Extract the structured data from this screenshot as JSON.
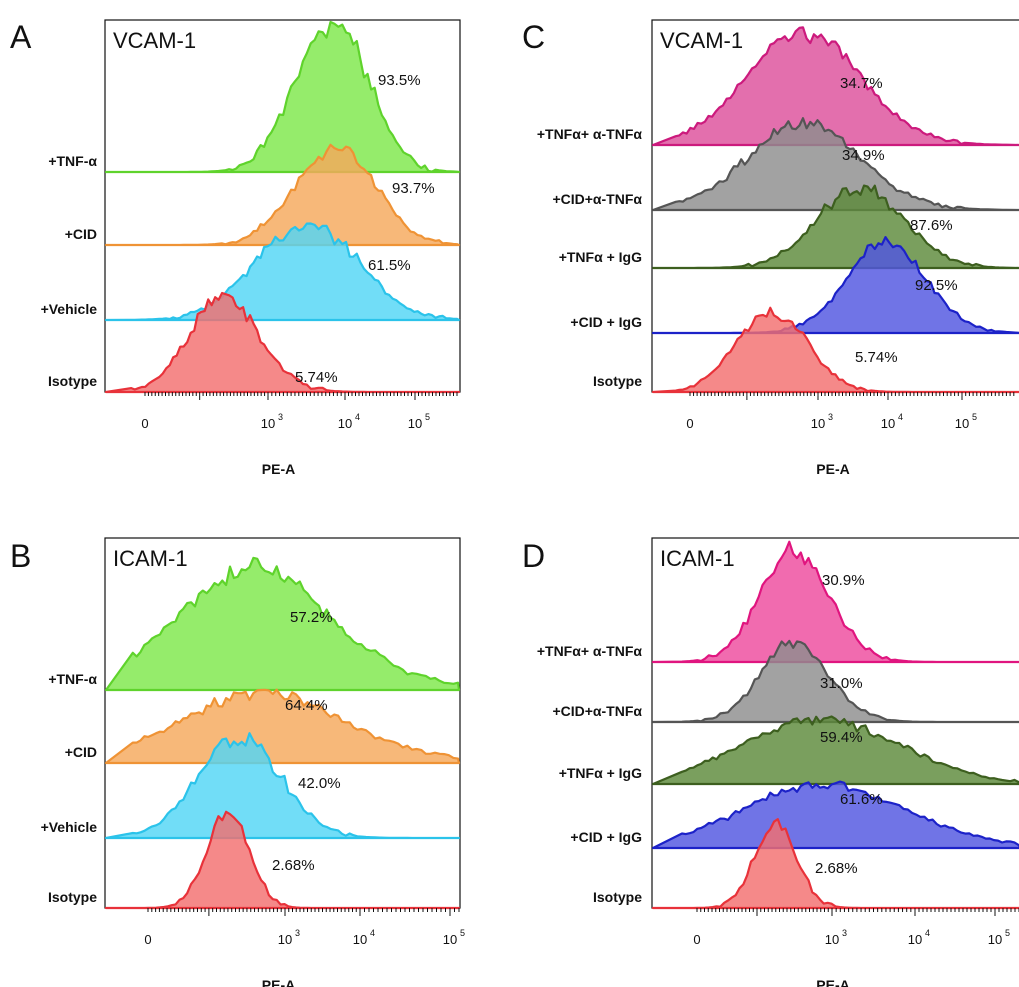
{
  "chart_data": [
    {
      "type": "area",
      "panel": "A",
      "title": "VCAM-1",
      "xlabel": "PE-A",
      "xscale": "biexponential",
      "x_ticks": [
        {
          "base": "0",
          "exp": ""
        },
        {
          "base": "10",
          "exp": "3"
        },
        {
          "base": "10",
          "exp": "4"
        },
        {
          "base": "10",
          "exp": "5"
        }
      ],
      "series": [
        {
          "name": "+TNF-α",
          "percent": "93.5%",
          "color": "#7ee84a",
          "line": "#5fd32c",
          "peak_log": 3.85,
          "width": 0.5,
          "height": 0.97
        },
        {
          "name": "+CID",
          "percent": "93.7%",
          "color": "#f5a85c",
          "line": "#ef9335",
          "peak_log": 3.9,
          "width": 0.55,
          "height": 0.97
        },
        {
          "name": "+Vehicle",
          "percent": "61.5%",
          "color": "#52d6f5",
          "line": "#2bc3ea",
          "peak_log": 3.5,
          "width": 0.7,
          "height": 0.93
        },
        {
          "name": "Isotype",
          "percent": "5.74%",
          "color": "#f36f6f",
          "line": "#e8323a",
          "peak_log": 2.35,
          "width": 0.5,
          "height": 0.98
        }
      ]
    },
    {
      "type": "area",
      "panel": "B",
      "title": "ICAM-1",
      "xlabel": "PE-A",
      "xscale": "biexponential",
      "x_ticks": [
        {
          "base": "0",
          "exp": ""
        },
        {
          "base": "10",
          "exp": "3"
        },
        {
          "base": "10",
          "exp": "4"
        },
        {
          "base": "10",
          "exp": "5"
        }
      ],
      "series": [
        {
          "name": "+TNF-α",
          "percent": "57.2%",
          "color": "#7ee84a",
          "line": "#5fd32c",
          "peak_log": 2.6,
          "width": 1.0,
          "height": 0.8
        },
        {
          "name": "+CID",
          "percent": "64.4%",
          "color": "#f5a85c",
          "line": "#ef9335",
          "peak_log": 2.7,
          "width": 1.05,
          "height": 0.72
        },
        {
          "name": "+Vehicle",
          "percent": "42.0%",
          "color": "#52d6f5",
          "line": "#2bc3ea",
          "peak_log": 2.4,
          "width": 0.55,
          "height": 1.0
        },
        {
          "name": "Isotype",
          "percent": "2.68%",
          "color": "#f36f6f",
          "line": "#e8323a",
          "peak_log": 2.25,
          "width": 0.28,
          "height": 1.0
        }
      ]
    },
    {
      "type": "area",
      "panel": "C",
      "title": "VCAM-1",
      "xlabel": "PE-A",
      "xscale": "biexponential",
      "x_ticks": [
        {
          "base": "0",
          "exp": ""
        },
        {
          "base": "10",
          "exp": "3"
        },
        {
          "base": "10",
          "exp": "4"
        },
        {
          "base": "10",
          "exp": "5"
        }
      ],
      "series": [
        {
          "name": "+TNFα+ α-TNFα",
          "percent": "34.7%",
          "color": "#dd4f9b",
          "line": "#cc1a7d",
          "peak_log": 2.8,
          "width": 0.8,
          "height": 0.95
        },
        {
          "name": "+CID+α-TNFα",
          "percent": "34.9%",
          "color": "#8e8e8e",
          "line": "#555555",
          "peak_log": 2.8,
          "width": 0.8,
          "height": 0.95
        },
        {
          "name": "+TNFα + IgG",
          "percent": "87.6%",
          "color": "#5d8a3a",
          "line": "#3d5f1f",
          "peak_log": 3.6,
          "width": 0.6,
          "height": 1.0
        },
        {
          "name": "+CID + IgG",
          "percent": "92.5%",
          "color": "#5055e0",
          "line": "#1c22c8",
          "peak_log": 3.95,
          "width": 0.55,
          "height": 1.0
        },
        {
          "name": "Isotype",
          "percent": "5.74%",
          "color": "#f36f6f",
          "line": "#e8323a",
          "peak_log": 2.35,
          "width": 0.5,
          "height": 0.98
        }
      ]
    },
    {
      "type": "area",
      "panel": "D",
      "title": "ICAM-1",
      "xlabel": "PE-A",
      "xscale": "biexponential",
      "x_ticks": [
        {
          "base": "0",
          "exp": ""
        },
        {
          "base": "10",
          "exp": "3"
        },
        {
          "base": "10",
          "exp": "4"
        },
        {
          "base": "10",
          "exp": "5"
        }
      ],
      "series": [
        {
          "name": "+TNFα+ α-TNFα",
          "percent": "30.9%",
          "color": "#ee4a9e",
          "line": "#e0157f",
          "peak_log": 2.5,
          "width": 0.45,
          "height": 0.95
        },
        {
          "name": "+CID+α-TNFα",
          "percent": "31.0%",
          "color": "#8e8e8e",
          "line": "#555555",
          "peak_log": 2.5,
          "width": 0.45,
          "height": 0.95
        },
        {
          "name": "+TNFα + IgG",
          "percent": "59.4%",
          "color": "#5d8a3a",
          "line": "#3d5f1f",
          "peak_log": 2.8,
          "width": 1.0,
          "height": 0.75
        },
        {
          "name": "+CID + IgG",
          "percent": "61.6%",
          "color": "#5055e0",
          "line": "#1c22c8",
          "peak_log": 2.85,
          "width": 1.05,
          "height": 0.7
        },
        {
          "name": "Isotype",
          "percent": "2.68%",
          "color": "#f36f6f",
          "line": "#e8323a",
          "peak_log": 2.25,
          "width": 0.28,
          "height": 1.0
        }
      ]
    }
  ]
}
